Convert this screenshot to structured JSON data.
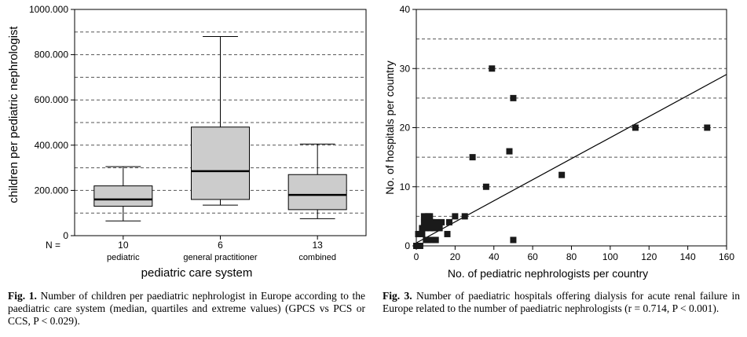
{
  "figures": {
    "fig1": {
      "caption_label": "Fig. 1.",
      "caption_text": "Number of children per paediatric nephrologist in Europe according to the paediatric care system (median, quartiles and extreme values) (GPCS vs PCS or CCS, P < 0.029).",
      "n_label": "N ="
    },
    "fig3": {
      "caption_label": "Fig. 3.",
      "caption_text": "Number of paediatric hospitals offering dialysis for acute renal failure in Europe related to the number of paediatric nephrologists (r = 0.714, P < 0.001)."
    }
  },
  "chart_data": [
    {
      "type": "box",
      "title": "",
      "xlabel": "pediatric care system",
      "ylabel": "children per pediatric nephrologist",
      "ylim": [
        0,
        1000000
      ],
      "yticks": [
        0,
        200000,
        400000,
        600000,
        800000,
        1000000
      ],
      "ytick_labels": [
        "0",
        "200.000",
        "400.000",
        "600.000",
        "800.000",
        "1000.000"
      ],
      "dashed_gridlines": [
        100000,
        200000,
        300000,
        400000,
        500000,
        600000,
        700000,
        800000,
        900000
      ],
      "categories": [
        "pediatric",
        "general practitioner",
        "combined"
      ],
      "n": [
        "10",
        "6",
        "13"
      ],
      "boxes": [
        {
          "min": 65000,
          "q1": 130000,
          "median": 160000,
          "q3": 220000,
          "max": 305000
        },
        {
          "min": 135000,
          "q1": 160000,
          "median": 285000,
          "q3": 480000,
          "max": 880000
        },
        {
          "min": 75000,
          "q1": 115000,
          "median": 180000,
          "q3": 270000,
          "max": 405000
        }
      ],
      "colors": {
        "box_fill": "#cccccc",
        "grid": "#555555"
      }
    },
    {
      "type": "scatter",
      "title": "",
      "xlabel": "No. of pediatric nephrologists per country",
      "ylabel": "No. of hospitals per country",
      "xlim": [
        0,
        160
      ],
      "ylim": [
        0,
        40
      ],
      "xticks": [
        0,
        20,
        40,
        60,
        80,
        100,
        120,
        140,
        160
      ],
      "yticks": [
        0,
        10,
        20,
        30,
        40
      ],
      "dashed_gridlines": [
        5,
        10,
        15,
        20,
        25,
        30,
        35
      ],
      "points": [
        [
          0,
          0
        ],
        [
          1,
          0
        ],
        [
          2,
          0
        ],
        [
          1,
          2
        ],
        [
          3,
          2
        ],
        [
          5,
          1
        ],
        [
          6,
          1
        ],
        [
          8,
          1
        ],
        [
          10,
          1
        ],
        [
          3,
          3
        ],
        [
          5,
          3
        ],
        [
          7,
          3
        ],
        [
          9,
          3
        ],
        [
          4,
          4
        ],
        [
          6,
          4
        ],
        [
          8,
          4
        ],
        [
          10,
          4
        ],
        [
          12,
          3
        ],
        [
          13,
          4
        ],
        [
          4,
          5
        ],
        [
          6,
          5
        ],
        [
          7,
          5
        ],
        [
          16,
          2
        ],
        [
          17,
          4
        ],
        [
          20,
          5
        ],
        [
          25,
          5
        ],
        [
          29,
          15
        ],
        [
          36,
          10
        ],
        [
          39,
          30
        ],
        [
          48,
          16
        ],
        [
          50,
          25
        ],
        [
          50,
          1
        ],
        [
          75,
          12
        ],
        [
          113,
          20
        ],
        [
          150,
          20
        ]
      ],
      "regression": {
        "x": [
          0,
          160
        ],
        "y": [
          0.5,
          29
        ]
      },
      "colors": {
        "marker": "#1a1a1a",
        "grid": "#555555"
      }
    }
  ]
}
